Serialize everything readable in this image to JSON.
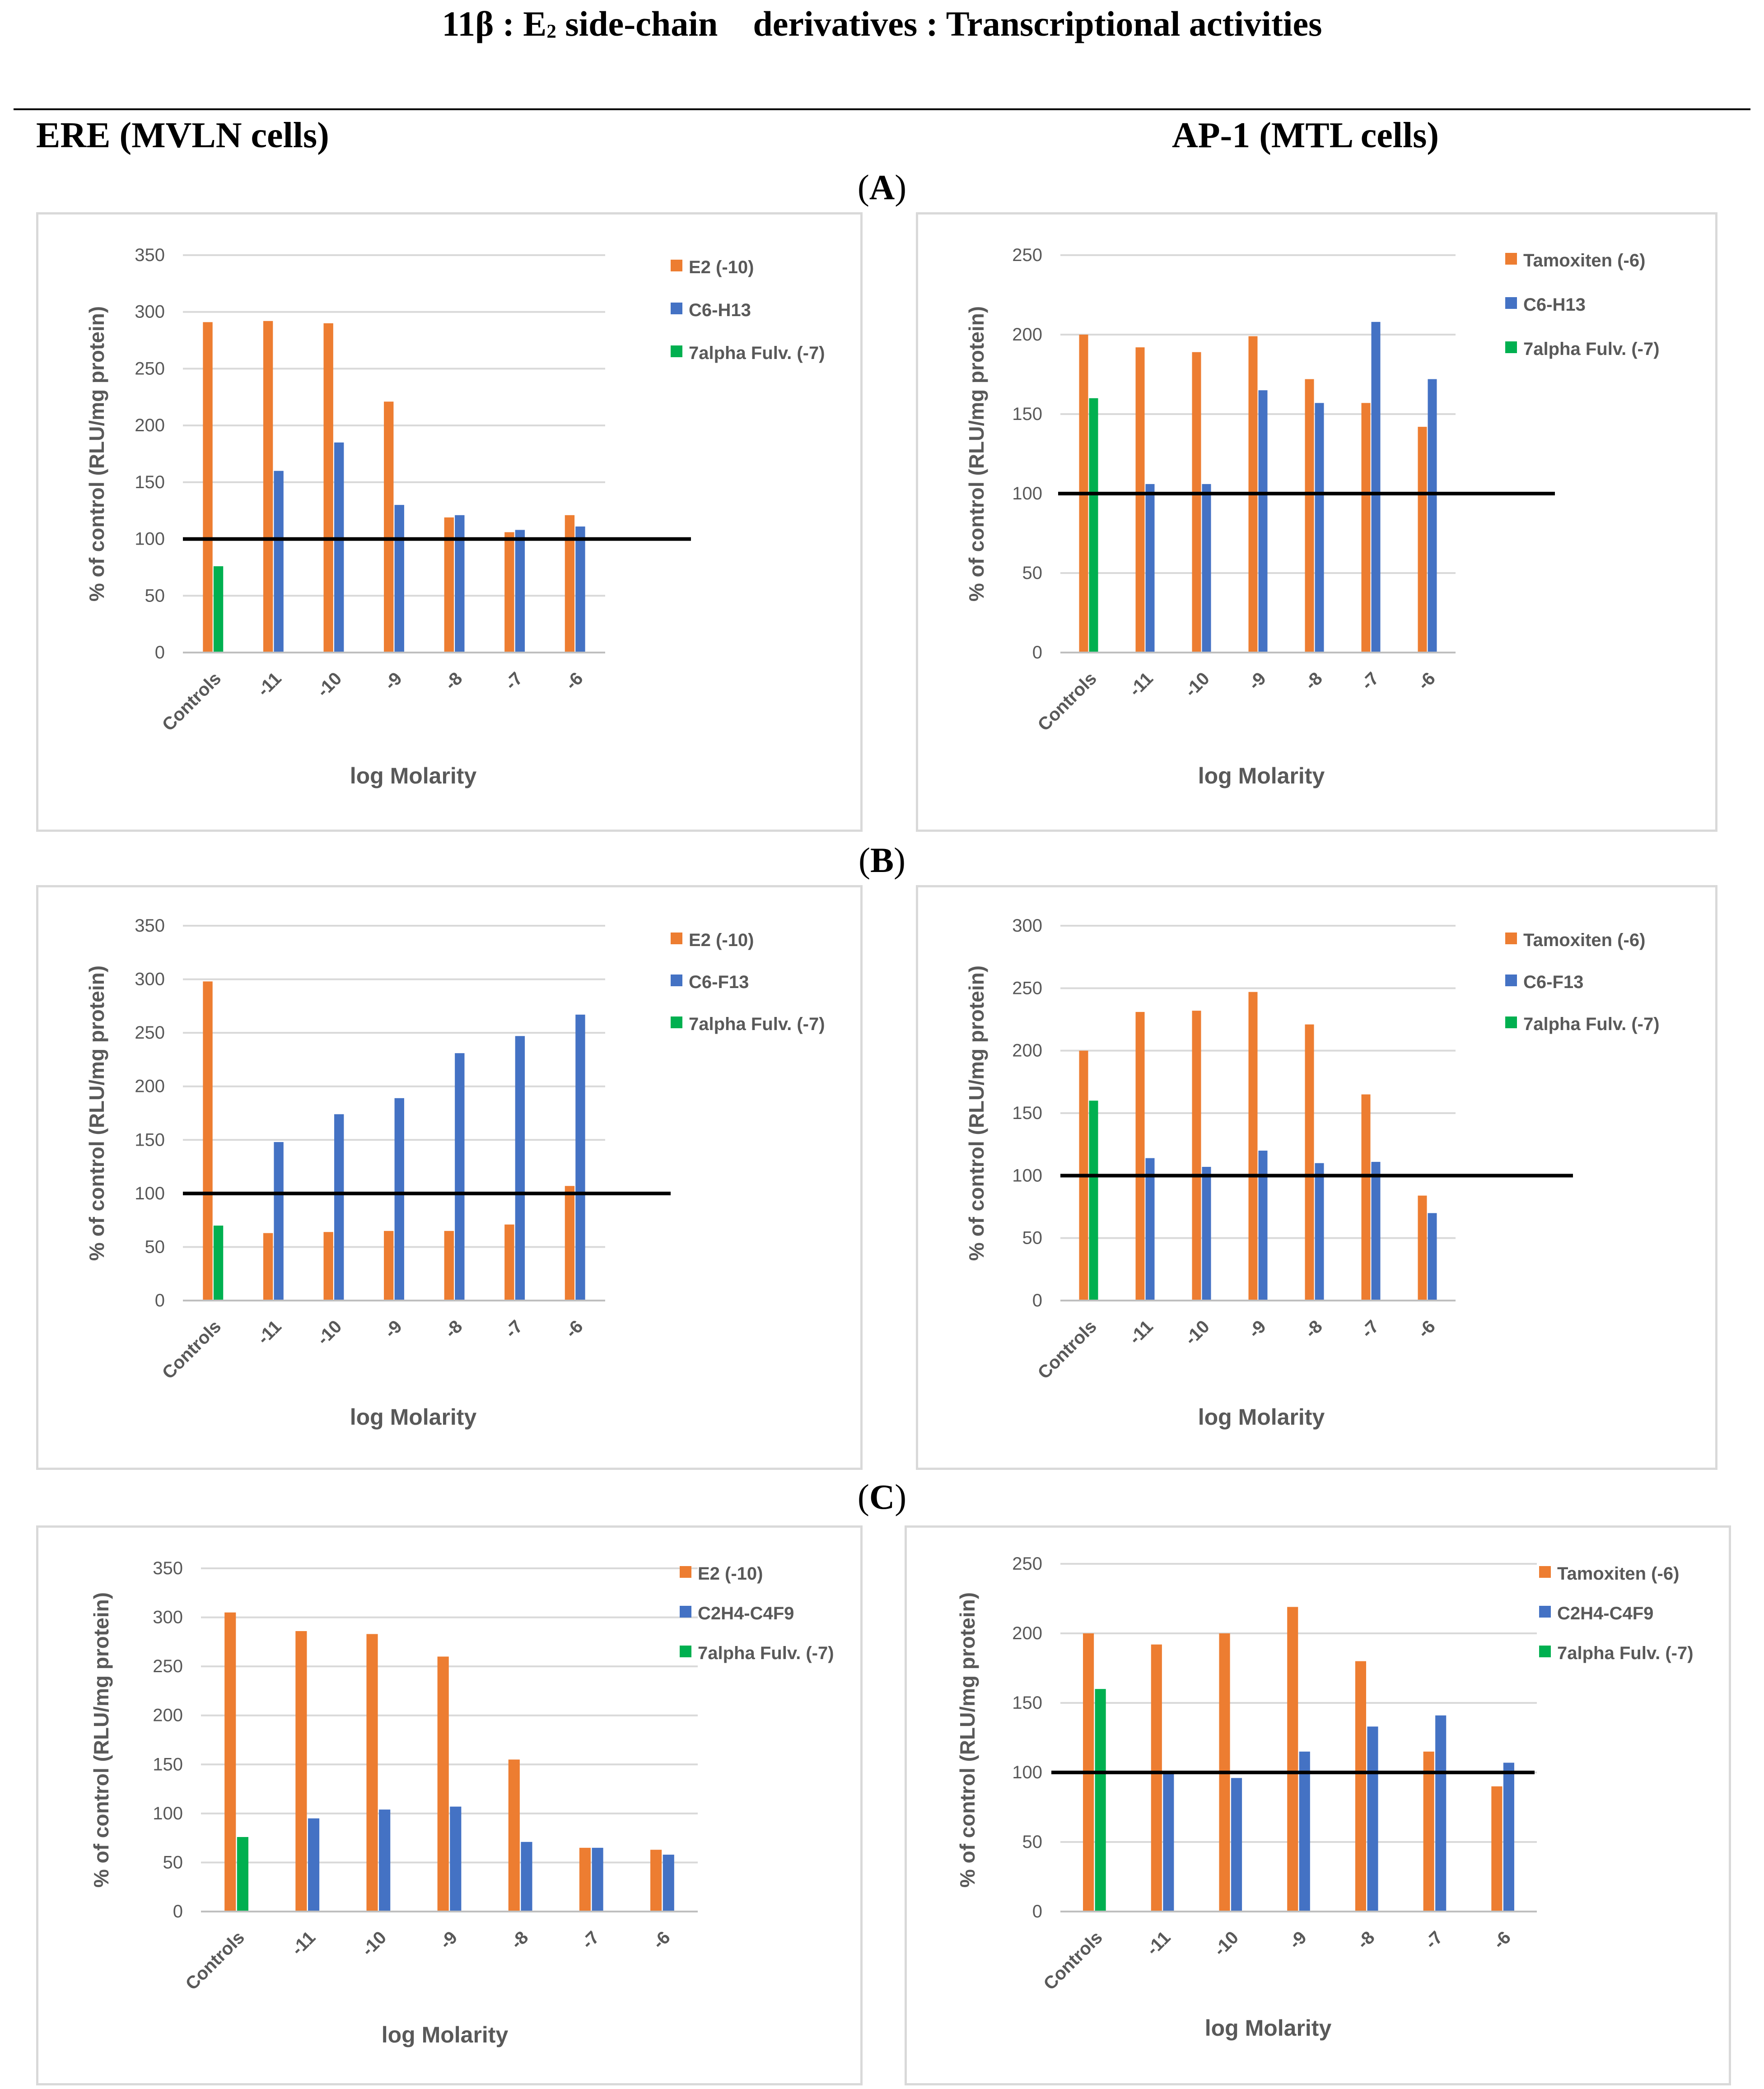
{
  "figure": {
    "title": "11β : E₂ side-chain    derivatives : Transcriptional activities",
    "columns": [
      "ERE (MVLN cells)",
      "AP-1 (MTL cells)"
    ],
    "rows": [
      "A",
      "B",
      "C"
    ]
  },
  "colors": {
    "series1": "#ED7D31",
    "series2": "#4472C4",
    "series3": "#00B050",
    "grid": "#d9d9d9",
    "reference_line": "#000000"
  },
  "chart_data": [
    {
      "id": "A-ERE",
      "type": "bar",
      "categories": [
        "Controls",
        "-11",
        "-10",
        "-9",
        "-8",
        "-7",
        "-6"
      ],
      "series": [
        {
          "name": "E2 (-10)",
          "values": [
            291,
            292,
            290,
            221,
            119,
            106,
            121
          ]
        },
        {
          "name": "C6-H13",
          "values": [
            null,
            160,
            185,
            130,
            121,
            108,
            111
          ]
        },
        {
          "name": "7alpha Fulv. (-7)",
          "values": [
            76,
            null,
            null,
            null,
            null,
            null,
            null
          ]
        }
      ],
      "ylim": [
        0,
        350
      ],
      "yticks": [
        0,
        50,
        100,
        150,
        200,
        250,
        300,
        350
      ],
      "reference_line": 100,
      "xlabel": "log Molarity",
      "ylabel": "% of control (RLU/mg protein)",
      "legend": "right"
    },
    {
      "id": "A-AP1",
      "type": "bar",
      "categories": [
        "Controls",
        "-11",
        "-10",
        "-9",
        "-8",
        "-7",
        "-6"
      ],
      "series": [
        {
          "name": "Tamoxiten (-6)",
          "values": [
            200,
            192,
            189,
            199,
            172,
            157,
            142
          ]
        },
        {
          "name": "C6-H13",
          "values": [
            null,
            106,
            106,
            165,
            157,
            208,
            172
          ]
        },
        {
          "name": "7alpha Fulv. (-7)",
          "values": [
            160,
            null,
            null,
            null,
            null,
            null,
            null
          ]
        }
      ],
      "ylim": [
        0,
        250
      ],
      "yticks": [
        0,
        50,
        100,
        150,
        200,
        250
      ],
      "reference_line": 100,
      "xlabel": "log Molarity",
      "ylabel": "% of control (RLU/mg protein)",
      "legend": "right"
    },
    {
      "id": "B-ERE",
      "type": "bar",
      "categories": [
        "Controls",
        "-11",
        "-10",
        "-9",
        "-8",
        "-7",
        "-6"
      ],
      "series": [
        {
          "name": "E2 (-10)",
          "values": [
            298,
            63,
            64,
            65,
            65,
            71,
            107
          ]
        },
        {
          "name": "C6-F13",
          "values": [
            null,
            148,
            174,
            189,
            231,
            247,
            267
          ]
        },
        {
          "name": "7alpha Fulv. (-7)",
          "values": [
            70,
            null,
            null,
            null,
            null,
            null,
            null
          ]
        }
      ],
      "ylim": [
        0,
        350
      ],
      "yticks": [
        0,
        50,
        100,
        150,
        200,
        250,
        300,
        350
      ],
      "reference_line": 100,
      "xlabel": "log Molarity",
      "ylabel": "% of control (RLU/mg protein)",
      "legend": "right"
    },
    {
      "id": "B-AP1",
      "type": "bar",
      "categories": [
        "Controls",
        "-11",
        "-10",
        "-9",
        "-8",
        "-7",
        "-6"
      ],
      "series": [
        {
          "name": "Tamoxiten (-6)",
          "values": [
            200,
            231,
            232,
            247,
            221,
            165,
            84
          ]
        },
        {
          "name": "C6-F13",
          "values": [
            null,
            114,
            107,
            120,
            110,
            111,
            70
          ]
        },
        {
          "name": "7alpha Fulv. (-7)",
          "values": [
            160,
            null,
            null,
            null,
            null,
            null,
            null
          ]
        }
      ],
      "ylim": [
        0,
        300
      ],
      "yticks": [
        0,
        50,
        100,
        150,
        200,
        250,
        300
      ],
      "reference_line": 100,
      "xlabel": "log Molarity",
      "ylabel": "% of control (RLU/mg protein)",
      "legend": "right"
    },
    {
      "id": "C-ERE",
      "type": "bar",
      "categories": [
        "Controls",
        "-11",
        "-10",
        "-9",
        "-8",
        "-7",
        "-6"
      ],
      "series": [
        {
          "name": "E2 (-10)",
          "values": [
            305,
            286,
            283,
            260,
            155,
            65,
            63
          ]
        },
        {
          "name": "C2H4-C4F9",
          "values": [
            null,
            95,
            104,
            107,
            71,
            65,
            58
          ]
        },
        {
          "name": "7alpha Fulv. (-7)",
          "values": [
            76,
            null,
            null,
            null,
            null,
            null,
            null
          ]
        }
      ],
      "ylim": [
        0,
        350
      ],
      "yticks": [
        0,
        50,
        100,
        150,
        200,
        250,
        300,
        350
      ],
      "reference_line": null,
      "xlabel": "log Molarity",
      "ylabel": "% of control (RLU/mg protein)",
      "legend": "right"
    },
    {
      "id": "C-AP1",
      "type": "bar",
      "categories": [
        "Controls",
        "-11",
        "-10",
        "-9",
        "-8",
        "-7",
        "-6"
      ],
      "series": [
        {
          "name": "Tamoxiten (-6)",
          "values": [
            200,
            192,
            200,
            219,
            180,
            115,
            90
          ]
        },
        {
          "name": "C2H4-C4F9",
          "values": [
            null,
            100,
            96,
            115,
            133,
            141,
            107
          ]
        },
        {
          "name": "7alpha Fulv. (-7)",
          "values": [
            160,
            null,
            null,
            null,
            null,
            null,
            null
          ]
        }
      ],
      "ylim": [
        0,
        250
      ],
      "yticks": [
        0,
        50,
        100,
        150,
        200,
        250
      ],
      "reference_line": 100,
      "xlabel": "log Molarity",
      "ylabel": "% of control (RLU/mg protein)",
      "legend": "right"
    }
  ]
}
